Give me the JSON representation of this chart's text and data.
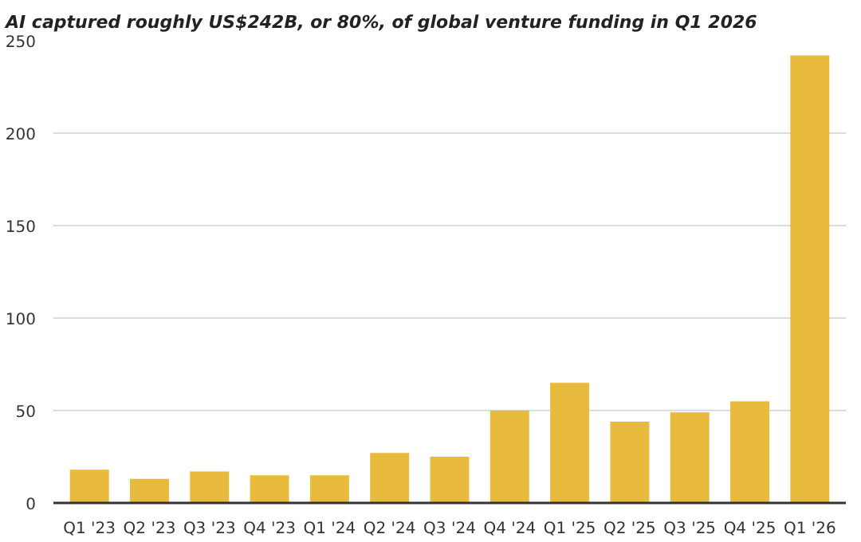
{
  "chart_data": {
    "type": "bar",
    "title": "AI captured roughly US$242B, or 80%, of global venture funding in Q1 2026",
    "categories": [
      "Q1 '23",
      "Q2 '23",
      "Q3 '23",
      "Q4 '23",
      "Q1 '24",
      "Q2 '24",
      "Q3 '24",
      "Q4 '24",
      "Q1 '25",
      "Q2 '25",
      "Q3 '25",
      "Q4 '25",
      "Q1 '26"
    ],
    "values": [
      18,
      13,
      17,
      15,
      15,
      27,
      25,
      50,
      65,
      44,
      49,
      55,
      242
    ],
    "color": "#e8bb3f",
    "ylim": [
      0,
      250
    ],
    "yticks": [
      0,
      50,
      100,
      150,
      200,
      250
    ],
    "grid": "y"
  }
}
